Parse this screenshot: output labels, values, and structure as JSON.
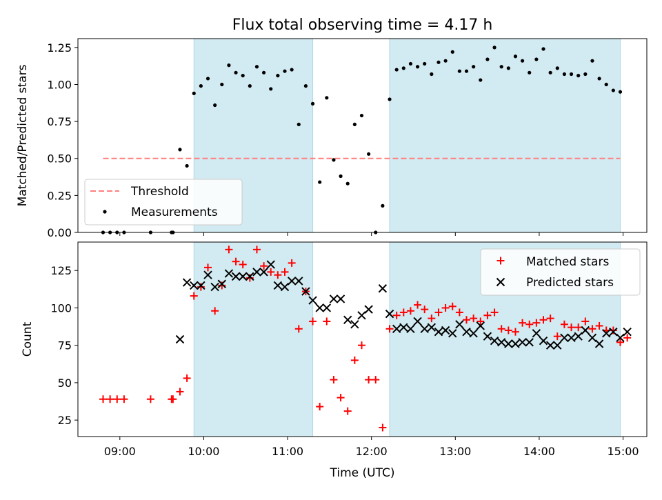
{
  "figure": {
    "title": "Flux total observing time = 4.17 h",
    "xlabel": "Time (UTC)"
  },
  "colors": {
    "shade": "#add8e6",
    "threshold": "#ff7f7f",
    "measurement": "#000000",
    "matched": "#ff0000",
    "predicted": "#000000"
  },
  "chart_data": [
    {
      "type": "scatter",
      "panel": "top",
      "ylabel": "Matched/Predicted stars",
      "ylim": [
        0,
        1.31
      ],
      "xlim": [
        "08:30",
        "15:17"
      ],
      "yticks": [
        "0.00",
        "0.25",
        "0.50",
        "0.75",
        "1.00",
        "1.25"
      ],
      "yticks_values": [
        0,
        0.25,
        0.5,
        0.75,
        1.0,
        1.25
      ],
      "shaded_spans": [
        [
          "09:53",
          "11:18"
        ],
        [
          "12:13",
          "14:58"
        ]
      ],
      "threshold": {
        "name": "Threshold",
        "value": 0.5,
        "x_range": [
          "08:48",
          "14:58"
        ]
      },
      "legend_position": "lower-left",
      "series": [
        {
          "name": "Measurements",
          "points": [
            [
              "08:48",
              0
            ],
            [
              "08:53",
              0
            ],
            [
              "08:58",
              0
            ],
            [
              "09:03",
              0
            ],
            [
              "09:22",
              0
            ],
            [
              "09:37",
              0
            ],
            [
              "09:38",
              0
            ],
            [
              "09:43",
              0.56
            ],
            [
              "09:48",
              0.45
            ],
            [
              "09:53",
              0.94
            ],
            [
              "09:58",
              0.99
            ],
            [
              "10:03",
              1.04
            ],
            [
              "10:08",
              0.86
            ],
            [
              "10:13",
              1.0
            ],
            [
              "10:18",
              1.13
            ],
            [
              "10:23",
              1.08
            ],
            [
              "10:28",
              1.06
            ],
            [
              "10:33",
              0.99
            ],
            [
              "10:38",
              1.12
            ],
            [
              "10:43",
              1.08
            ],
            [
              "10:48",
              0.97
            ],
            [
              "10:53",
              1.06
            ],
            [
              "10:58",
              1.09
            ],
            [
              "11:03",
              1.1
            ],
            [
              "11:08",
              0.73
            ],
            [
              "11:13",
              0.99
            ],
            [
              "11:18",
              0.87
            ],
            [
              "11:23",
              0.34
            ],
            [
              "11:28",
              0.91
            ],
            [
              "11:33",
              0.49
            ],
            [
              "11:38",
              0.38
            ],
            [
              "11:43",
              0.33
            ],
            [
              "11:48",
              0.73
            ],
            [
              "11:53",
              0.79
            ],
            [
              "11:58",
              0.53
            ],
            [
              "12:03",
              0
            ],
            [
              "12:08",
              0.18
            ],
            [
              "12:13",
              0.9
            ],
            [
              "12:18",
              1.1
            ],
            [
              "12:23",
              1.11
            ],
            [
              "12:28",
              1.14
            ],
            [
              "12:33",
              1.12
            ],
            [
              "12:38",
              1.14
            ],
            [
              "12:43",
              1.07
            ],
            [
              "12:48",
              1.15
            ],
            [
              "12:53",
              1.16
            ],
            [
              "12:58",
              1.22
            ],
            [
              "13:03",
              1.09
            ],
            [
              "13:08",
              1.09
            ],
            [
              "13:13",
              1.12
            ],
            [
              "13:18",
              1.03
            ],
            [
              "13:23",
              1.17
            ],
            [
              "13:28",
              1.25
            ],
            [
              "13:33",
              1.12
            ],
            [
              "13:38",
              1.11
            ],
            [
              "13:43",
              1.19
            ],
            [
              "13:48",
              1.16
            ],
            [
              "13:53",
              1.08
            ],
            [
              "13:58",
              1.17
            ],
            [
              "14:03",
              1.24
            ],
            [
              "14:08",
              1.08
            ],
            [
              "14:13",
              1.11
            ],
            [
              "14:18",
              1.07
            ],
            [
              "14:23",
              1.07
            ],
            [
              "14:28",
              1.06
            ],
            [
              "14:33",
              1.07
            ],
            [
              "14:38",
              1.16
            ],
            [
              "14:43",
              1.04
            ],
            [
              "14:48",
              1.0
            ],
            [
              "14:53",
              0.96
            ],
            [
              "14:58",
              0.95
            ]
          ]
        }
      ]
    },
    {
      "type": "scatter",
      "panel": "bottom",
      "ylabel": "Count",
      "ylim": [
        14,
        144
      ],
      "xlim": [
        "08:30",
        "15:17"
      ],
      "xticks": [
        "09:00",
        "10:00",
        "11:00",
        "12:00",
        "13:00",
        "14:00",
        "15:00"
      ],
      "yticks": [
        "25",
        "50",
        "75",
        "100",
        "125"
      ],
      "yticks_values": [
        25,
        50,
        75,
        100,
        125
      ],
      "shaded_spans": [
        [
          "09:53",
          "11:18"
        ],
        [
          "12:13",
          "14:58"
        ]
      ],
      "legend_position": "upper-right",
      "series": [
        {
          "name": "Matched stars",
          "marker": "plus",
          "points": [
            [
              "08:48",
              39
            ],
            [
              "08:53",
              39
            ],
            [
              "08:58",
              39
            ],
            [
              "09:03",
              39
            ],
            [
              "09:22",
              39
            ],
            [
              "09:37",
              39
            ],
            [
              "09:38",
              39
            ],
            [
              "09:43",
              44
            ],
            [
              "09:48",
              53
            ],
            [
              "09:53",
              108
            ],
            [
              "09:58",
              114
            ],
            [
              "10:03",
              127
            ],
            [
              "10:08",
              98
            ],
            [
              "10:13",
              115
            ],
            [
              "10:18",
              139
            ],
            [
              "10:23",
              131
            ],
            [
              "10:28",
              129
            ],
            [
              "10:33",
              120
            ],
            [
              "10:38",
              139
            ],
            [
              "10:43",
              128
            ],
            [
              "10:48",
              124
            ],
            [
              "10:53",
              122
            ],
            [
              "10:58",
              124
            ],
            [
              "11:03",
              130
            ],
            [
              "11:08",
              86
            ],
            [
              "11:13",
              111
            ],
            [
              "11:18",
              91
            ],
            [
              "11:23",
              34
            ],
            [
              "11:28",
              91
            ],
            [
              "11:33",
              52
            ],
            [
              "11:38",
              40
            ],
            [
              "11:43",
              31
            ],
            [
              "11:48",
              65
            ],
            [
              "11:53",
              75
            ],
            [
              "11:58",
              52
            ],
            [
              "12:03",
              52
            ],
            [
              "12:08",
              20
            ],
            [
              "12:13",
              86
            ],
            [
              "12:18",
              95
            ],
            [
              "12:23",
              97
            ],
            [
              "12:28",
              98
            ],
            [
              "12:33",
              102
            ],
            [
              "12:38",
              99
            ],
            [
              "12:43",
              93
            ],
            [
              "12:48",
              97
            ],
            [
              "12:53",
              100
            ],
            [
              "12:58",
              101
            ],
            [
              "13:03",
              97
            ],
            [
              "13:08",
              92
            ],
            [
              "13:13",
              93
            ],
            [
              "13:18",
              91
            ],
            [
              "13:23",
              95
            ],
            [
              "13:28",
              97
            ],
            [
              "13:33",
              86
            ],
            [
              "13:38",
              85
            ],
            [
              "13:43",
              84
            ],
            [
              "13:48",
              90
            ],
            [
              "13:53",
              89
            ],
            [
              "13:58",
              90
            ],
            [
              "14:03",
              92
            ],
            [
              "14:08",
              93
            ],
            [
              "14:13",
              81
            ],
            [
              "14:18",
              89
            ],
            [
              "14:23",
              87
            ],
            [
              "14:28",
              87
            ],
            [
              "14:33",
              91
            ],
            [
              "14:38",
              86
            ],
            [
              "14:43",
              88
            ],
            [
              "14:48",
              85
            ],
            [
              "14:53",
              85
            ],
            [
              "14:58",
              77
            ],
            [
              "15:03",
              80
            ]
          ]
        },
        {
          "name": "Predicted stars",
          "marker": "x",
          "points": [
            [
              "09:43",
              79
            ],
            [
              "09:48",
              117
            ],
            [
              "09:53",
              115
            ],
            [
              "09:58",
              115
            ],
            [
              "10:03",
              122
            ],
            [
              "10:08",
              114
            ],
            [
              "10:13",
              116
            ],
            [
              "10:18",
              123
            ],
            [
              "10:23",
              121
            ],
            [
              "10:28",
              121
            ],
            [
              "10:33",
              121
            ],
            [
              "10:38",
              124
            ],
            [
              "10:43",
              124
            ],
            [
              "10:48",
              129
            ],
            [
              "10:53",
              115
            ],
            [
              "10:58",
              114
            ],
            [
              "11:03",
              118
            ],
            [
              "11:08",
              118
            ],
            [
              "11:13",
              111
            ],
            [
              "11:18",
              105
            ],
            [
              "11:23",
              100
            ],
            [
              "11:28",
              100
            ],
            [
              "11:33",
              106
            ],
            [
              "11:38",
              106
            ],
            [
              "11:43",
              92
            ],
            [
              "11:48",
              89
            ],
            [
              "11:53",
              95
            ],
            [
              "11:58",
              99
            ],
            [
              "12:08",
              113
            ],
            [
              "12:13",
              96
            ],
            [
              "12:18",
              86
            ],
            [
              "12:23",
              87
            ],
            [
              "12:28",
              86
            ],
            [
              "12:33",
              91
            ],
            [
              "12:38",
              86
            ],
            [
              "12:43",
              87
            ],
            [
              "12:48",
              84
            ],
            [
              "12:53",
              85
            ],
            [
              "12:58",
              83
            ],
            [
              "13:03",
              89
            ],
            [
              "13:08",
              84
            ],
            [
              "13:13",
              83
            ],
            [
              "13:18",
              88
            ],
            [
              "13:23",
              81
            ],
            [
              "13:28",
              78
            ],
            [
              "13:33",
              77
            ],
            [
              "13:38",
              76
            ],
            [
              "13:43",
              76
            ],
            [
              "13:48",
              77
            ],
            [
              "13:53",
              77
            ],
            [
              "13:58",
              83
            ],
            [
              "14:03",
              78
            ],
            [
              "14:08",
              75
            ],
            [
              "14:13",
              75
            ],
            [
              "14:18",
              80
            ],
            [
              "14:23",
              80
            ],
            [
              "14:28",
              81
            ],
            [
              "14:33",
              85
            ],
            [
              "14:38",
              80
            ],
            [
              "14:43",
              76
            ],
            [
              "14:48",
              83
            ],
            [
              "14:53",
              84
            ],
            [
              "14:58",
              80
            ],
            [
              "15:03",
              84
            ]
          ]
        }
      ]
    }
  ]
}
